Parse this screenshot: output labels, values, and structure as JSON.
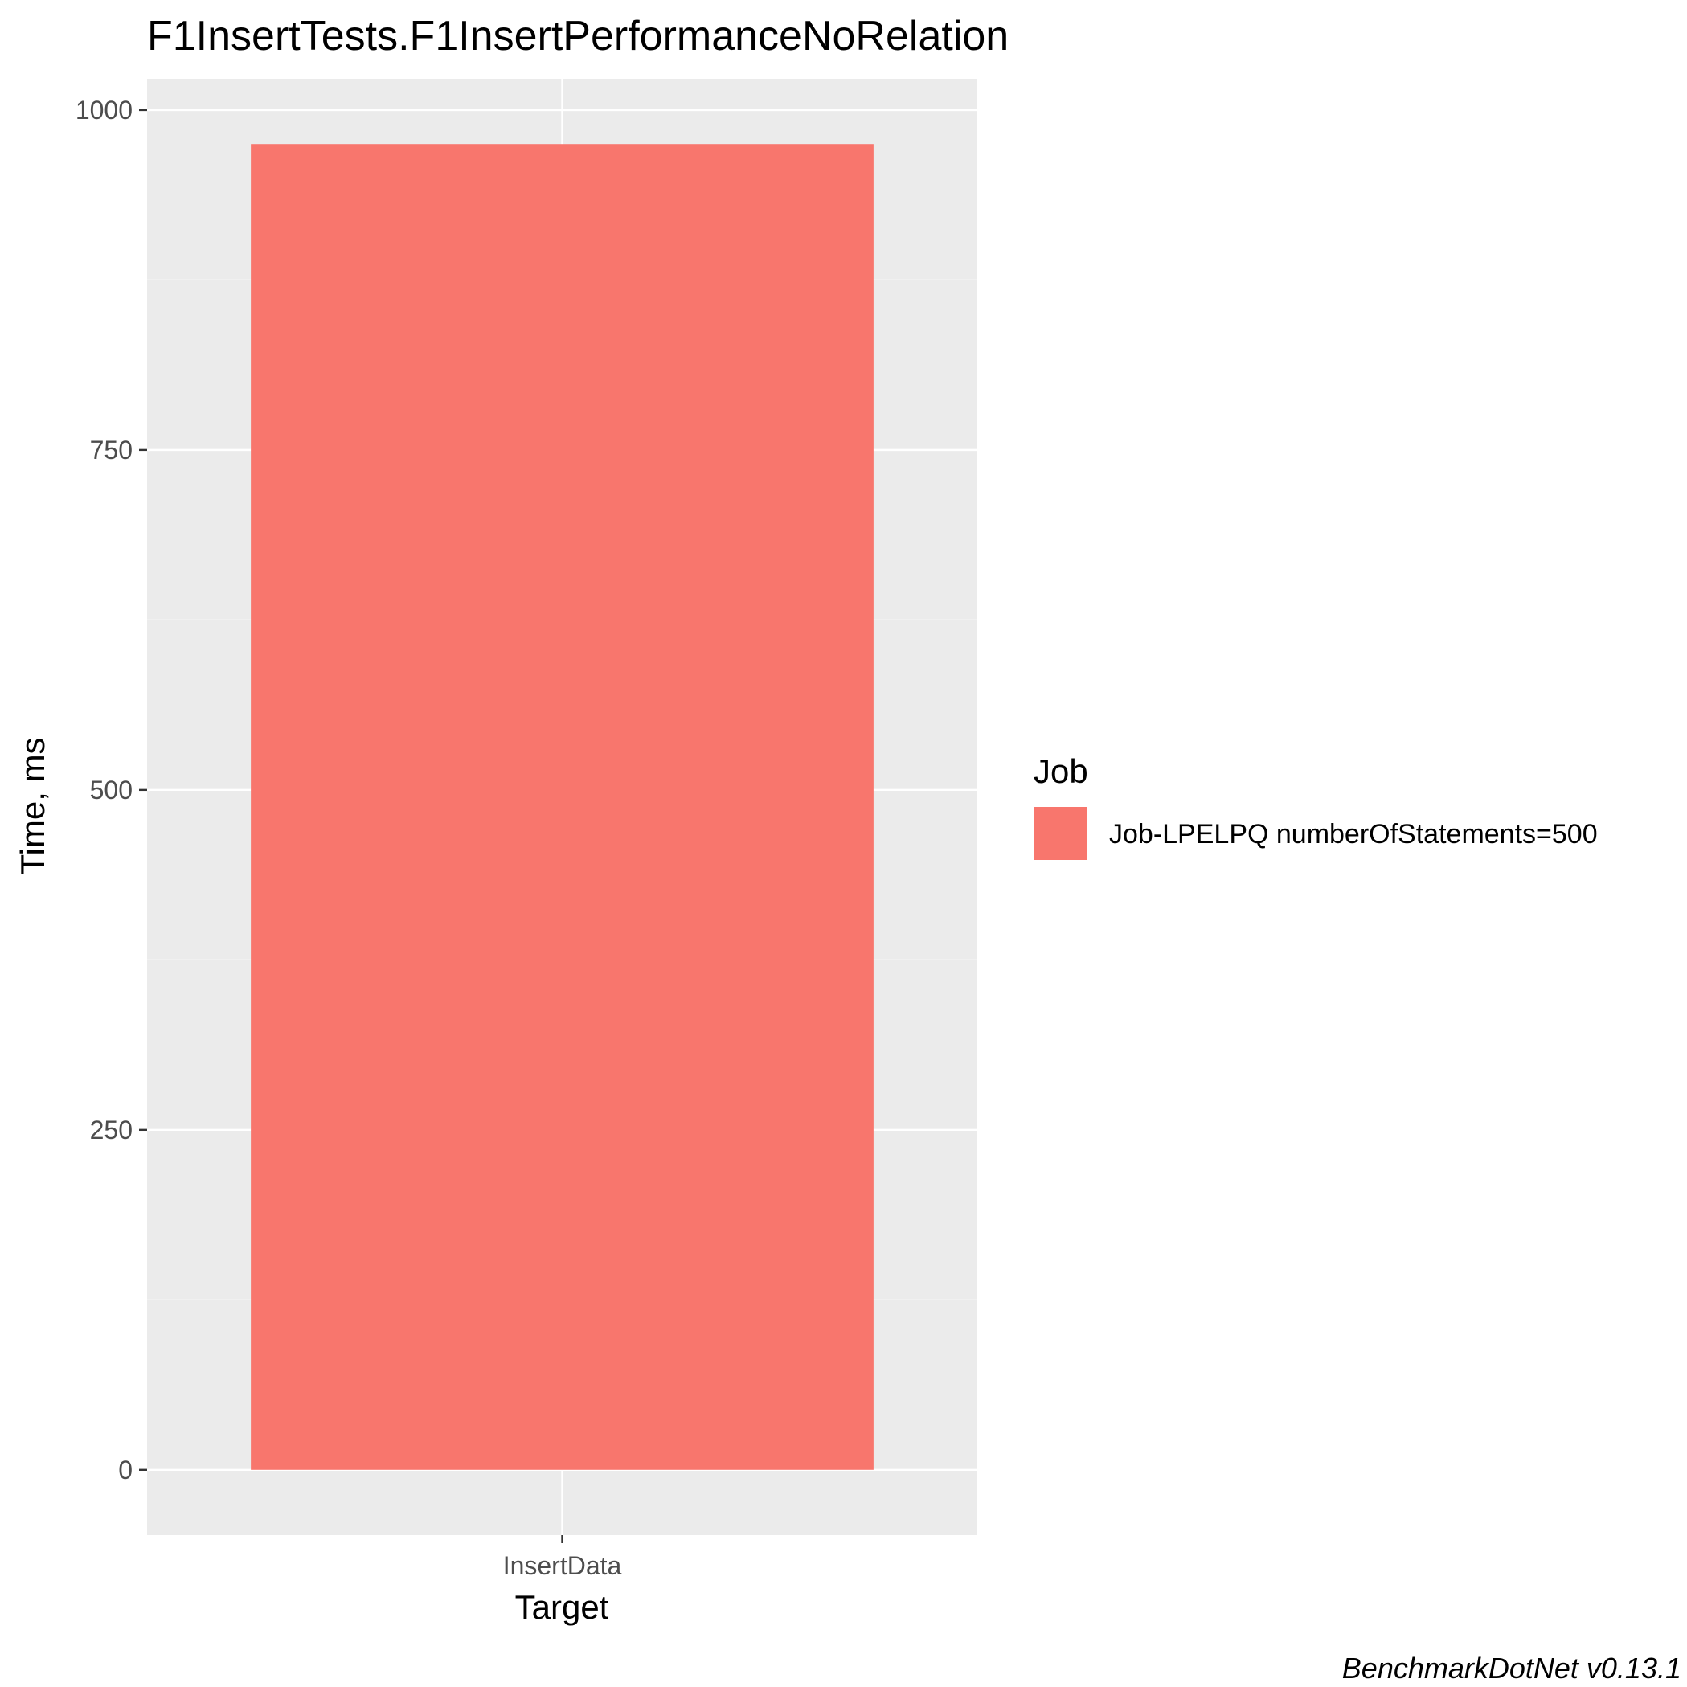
{
  "chart_data": {
    "type": "bar",
    "title": "F1InsertTests.F1InsertPerformanceNoRelation",
    "xlabel": "Target",
    "ylabel": "Time, ms",
    "categories": [
      "InsertData"
    ],
    "series": [
      {
        "name": "Job-LPELPQ numberOfStatements=500",
        "values": [
          975
        ],
        "color": "#F8766D"
      }
    ],
    "ylim": [
      -48,
      1023
    ],
    "yticks": [
      0,
      250,
      500,
      750,
      1000
    ],
    "ytick_labels": [
      "0",
      "250",
      "500",
      "750",
      "1000"
    ],
    "grid": true,
    "legend": {
      "title": "Job",
      "placement": "right"
    },
    "caption": "BenchmarkDotNet v0.13.1",
    "colors": {
      "panel_background": "#EBEBEB",
      "grid": "#FFFFFF",
      "bar": "#F8766D"
    }
  }
}
